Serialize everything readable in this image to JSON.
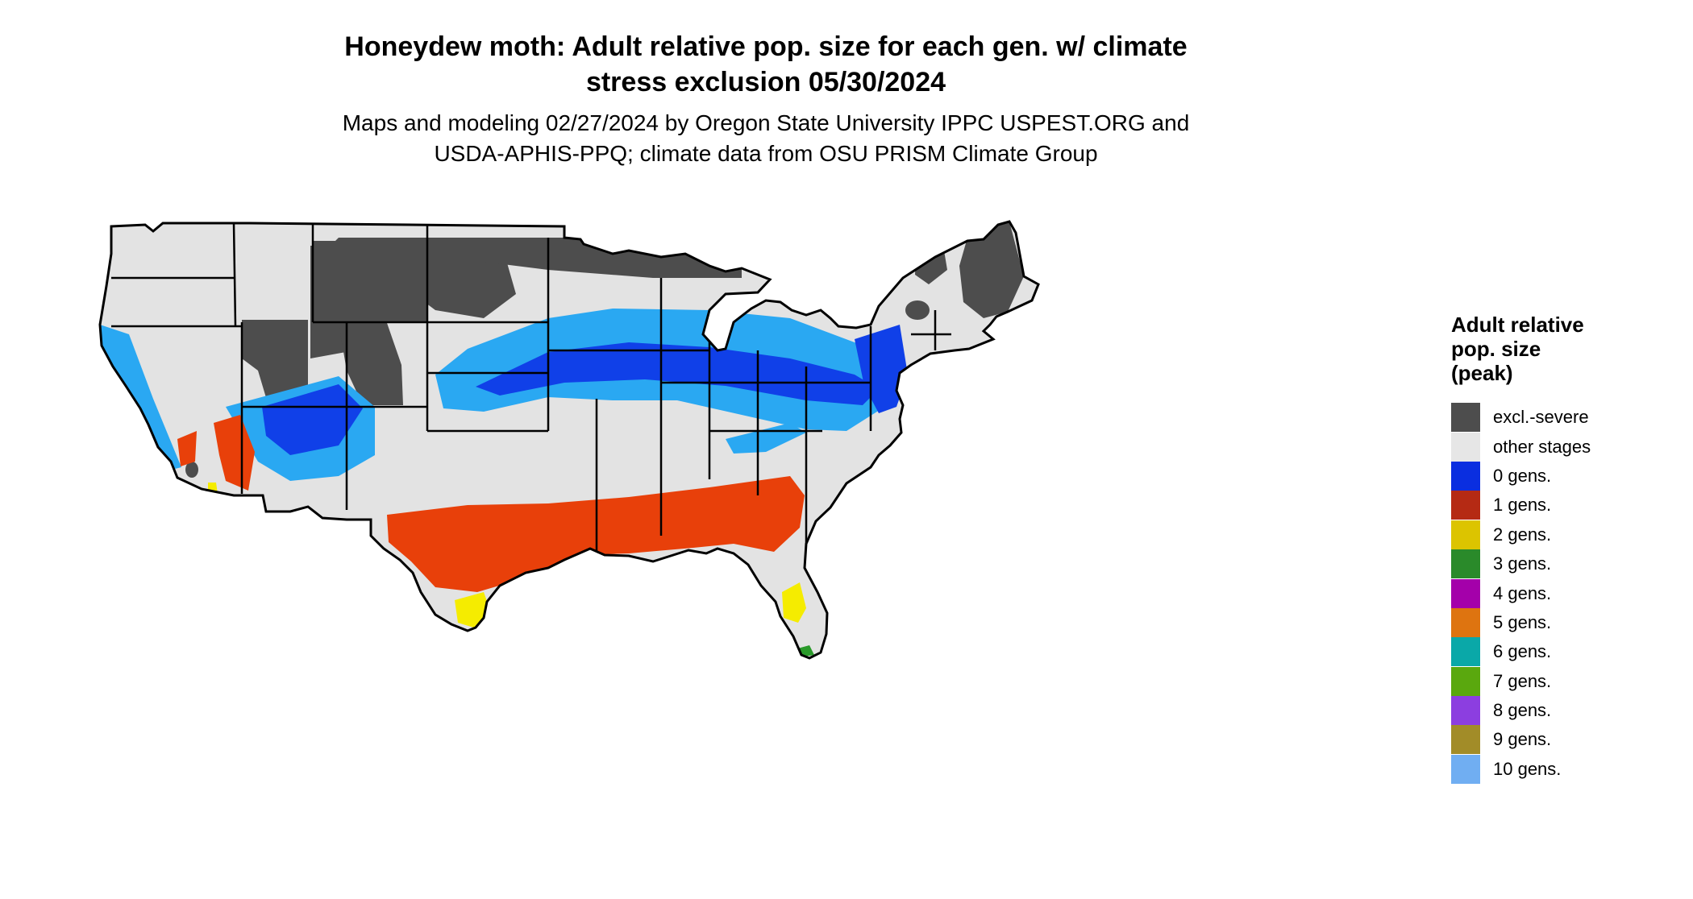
{
  "title_line1": "Honeydew moth: Adult relative pop. size for each gen. w/ climate",
  "title_line2": "stress exclusion 05/30/2024",
  "subtitle_line1": "Maps and modeling 02/27/2024 by Oregon State University IPPC USPEST.ORG and",
  "subtitle_line2": "USDA-APHIS-PPQ; climate data from OSU PRISM Climate Group",
  "legend": {
    "title_line1": "Adult relative",
    "title_line2": "pop. size",
    "title_line3": "(peak)",
    "items": [
      {
        "label": "excl.-severe",
        "color": "#4d4d4d"
      },
      {
        "label": "other stages",
        "color": "#e6e6e6"
      },
      {
        "label": "0 gens.",
        "color": "#0a2ee0"
      },
      {
        "label": "1 gens.",
        "color": "#b52a14"
      },
      {
        "label": "2 gens.",
        "color": "#dcc400"
      },
      {
        "label": "3 gens.",
        "color": "#2a8a2a"
      },
      {
        "label": "4 gens.",
        "color": "#a400aa"
      },
      {
        "label": "5 gens.",
        "color": "#de7410"
      },
      {
        "label": "6 gens.",
        "color": "#0aa8a8"
      },
      {
        "label": "7 gens.",
        "color": "#5aa80e"
      },
      {
        "label": "8 gens.",
        "color": "#8c3ee0"
      },
      {
        "label": "9 gens.",
        "color": "#a28c28"
      },
      {
        "label": "10 gens.",
        "color": "#70aef2"
      }
    ]
  },
  "map_colors": {
    "land": "#e3e3e3",
    "excluded": "#4d4d4d",
    "zero_gen_light": "#2aa8f2",
    "zero_gen_dark": "#1040e8",
    "one_gen": "#e8400a",
    "two_gen": "#f5ec00",
    "three_gen": "#2a9a2a",
    "border": "#000000"
  }
}
